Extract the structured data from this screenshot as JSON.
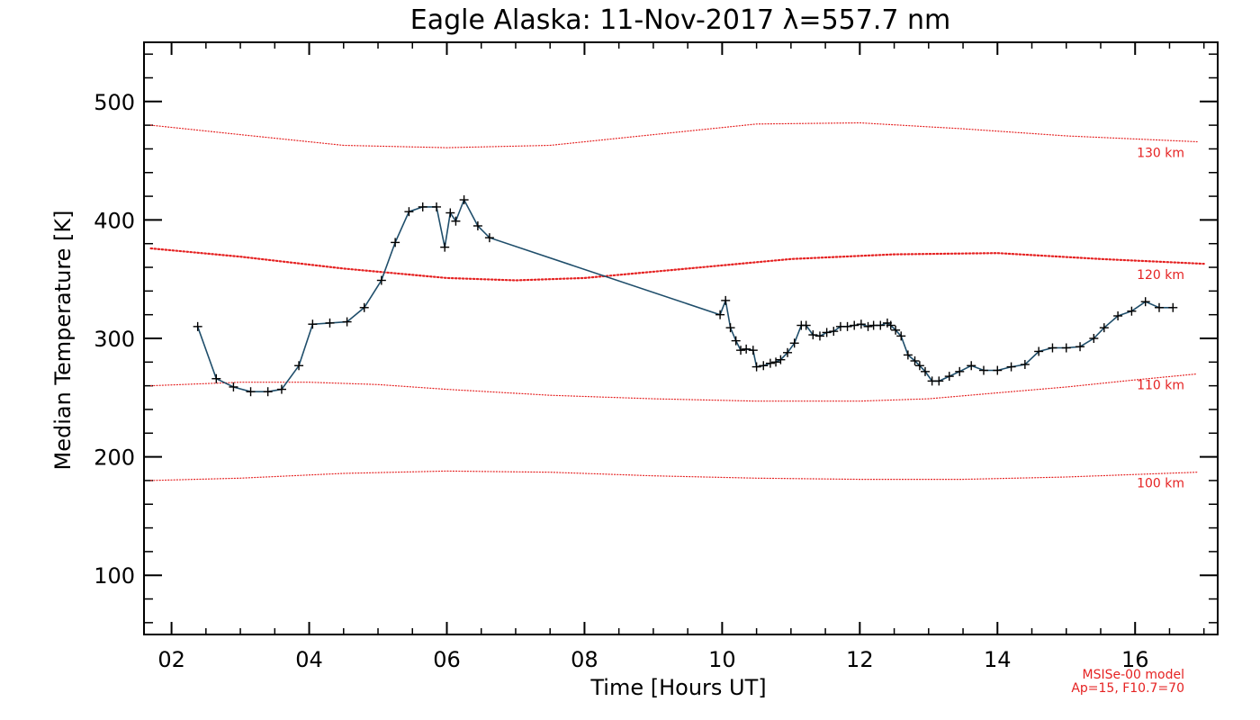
{
  "chart_data": {
    "type": "line",
    "title": "Eagle Alaska: 11-Nov-2017 λ=557.7 nm",
    "xlabel": "Time [Hours UT]",
    "ylabel": "Median Temperature [K]",
    "xlim": [
      1.6,
      17.2
    ],
    "ylim": [
      50,
      550
    ],
    "x_ticks": [
      2,
      4,
      6,
      8,
      10,
      12,
      14,
      16
    ],
    "x_tick_labels": [
      "02",
      "04",
      "06",
      "08",
      "10",
      "12",
      "14",
      "16"
    ],
    "y_ticks": [
      100,
      200,
      300,
      400,
      500
    ],
    "y_tick_labels": [
      "100",
      "200",
      "300",
      "400",
      "500"
    ],
    "series": [
      {
        "color": "#1f4e6b",
        "marker": "plus",
        "x": [
          2.38,
          2.65,
          2.9,
          3.15,
          3.4,
          3.6,
          3.85,
          4.05,
          4.3,
          4.55,
          4.8,
          5.05,
          5.25,
          5.45,
          5.65,
          5.85,
          5.97,
          6.05,
          6.13,
          6.25,
          6.45,
          6.62,
          9.97,
          10.05,
          10.12,
          10.2,
          10.27,
          10.35,
          10.45,
          10.5,
          10.6,
          10.7,
          10.78,
          10.85,
          10.95,
          11.05,
          11.15,
          11.22,
          11.32,
          11.42,
          11.52,
          11.62,
          11.72,
          11.82,
          11.92,
          12.02,
          12.12,
          12.2,
          12.3,
          12.4,
          12.45,
          12.52,
          12.6,
          12.7,
          12.8,
          12.87,
          12.95,
          13.05,
          13.15,
          13.3,
          13.45,
          13.62,
          13.8,
          14.0,
          14.2,
          14.4,
          14.6,
          14.8,
          15.0,
          15.2,
          15.4,
          15.55,
          15.75,
          15.95,
          16.15,
          16.35,
          16.55
        ],
        "y": [
          310,
          266,
          259,
          255,
          255,
          257,
          277,
          312,
          313,
          314,
          326,
          349,
          381,
          407,
          411,
          411,
          377,
          406,
          399,
          417,
          395,
          385,
          320,
          332,
          309,
          298,
          290,
          291,
          290,
          276,
          277,
          279,
          280,
          282,
          288,
          296,
          311,
          311,
          303,
          302,
          305,
          306,
          310,
          310,
          311,
          312,
          310,
          311,
          311,
          313,
          311,
          307,
          302,
          286,
          281,
          277,
          272,
          264,
          264,
          268,
          272,
          277,
          273,
          273,
          276,
          278,
          289,
          292,
          292,
          293,
          300,
          309,
          319,
          323,
          331,
          326,
          326
        ]
      }
    ],
    "model_curves": [
      {
        "label": "130 km",
        "color": "#e52222",
        "x": [
          1.7,
          3.0,
          4.5,
          6.0,
          7.5,
          9.0,
          10.5,
          12.0,
          13.5,
          15.0,
          16.9
        ],
        "y": [
          480,
          472,
          463,
          461,
          463,
          472,
          481,
          482,
          477,
          471,
          466
        ]
      },
      {
        "label": "120 km",
        "color": "#e52222",
        "x": [
          1.7,
          3.0,
          4.5,
          6.0,
          7.0,
          8.0,
          9.5,
          11.0,
          12.5,
          14.0,
          15.5,
          17.0
        ],
        "y": [
          376,
          369,
          359,
          351,
          349,
          351,
          359,
          367,
          371,
          372,
          367,
          363
        ]
      },
      {
        "label": "110 km",
        "color": "#e52222",
        "x": [
          1.7,
          3.0,
          4.0,
          5.0,
          6.0,
          7.5,
          9.0,
          10.5,
          12.0,
          13.0,
          14.0,
          15.0,
          16.0,
          16.9
        ],
        "y": [
          260,
          263,
          263,
          261,
          257,
          252,
          249,
          247,
          247,
          249,
          254,
          259,
          265,
          270
        ]
      },
      {
        "label": "100 km",
        "color": "#e52222",
        "x": [
          1.7,
          3.0,
          4.5,
          6.0,
          7.5,
          9.0,
          10.5,
          12.0,
          13.5,
          15.0,
          16.9
        ],
        "y": [
          180,
          182,
          186,
          188,
          187,
          184,
          182,
          181,
          181,
          183,
          187
        ]
      }
    ],
    "footnote_lines": [
      "MSISe-00 model",
      "Ap=15, F10.7=70"
    ]
  }
}
